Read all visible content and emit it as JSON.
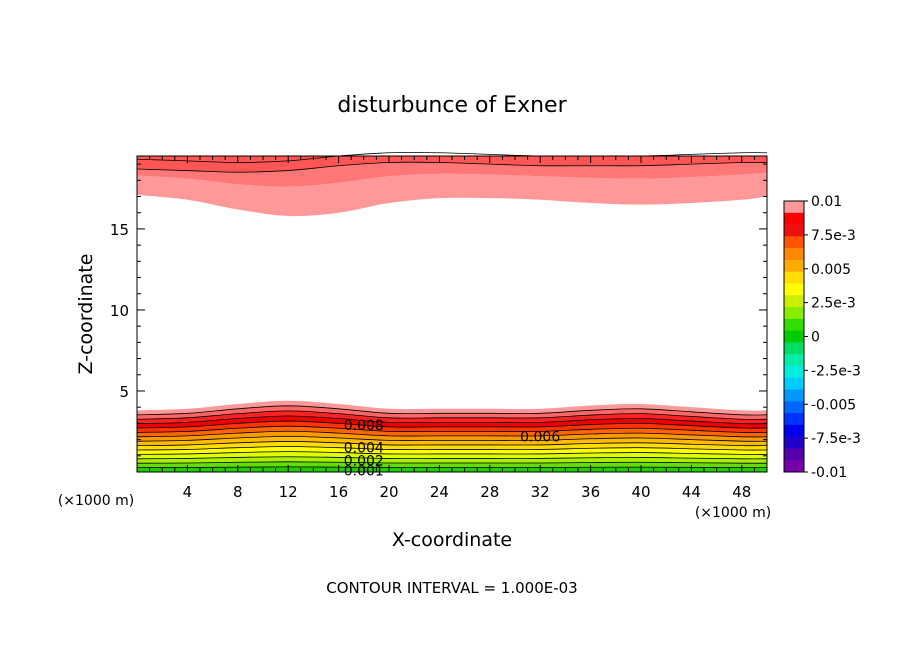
{
  "chart_data": {
    "type": "contour",
    "title": "disturbunce of Exner",
    "xlabel": "X-coordinate",
    "ylabel": "Z-coordinate",
    "x_unit_label": "(×1000 m)",
    "x_unit_label_right": "(×1000 m)",
    "xlim": [
      0,
      50
    ],
    "ylim": [
      0,
      19.5
    ],
    "x_ticks": [
      4,
      8,
      12,
      16,
      20,
      24,
      28,
      32,
      36,
      40,
      44,
      48
    ],
    "y_ticks": [
      5,
      10,
      15
    ],
    "contour_interval_text": "CONTOUR INTERVAL = 1.000E-03",
    "contour_labels": [
      {
        "text": "0.008",
        "x": 18,
        "z": 2.9
      },
      {
        "text": "0.006",
        "x": 32,
        "z": 2.2
      },
      {
        "text": "0.004",
        "x": 18,
        "z": 1.5
      },
      {
        "text": "0.002",
        "x": 18,
        "z": 0.7
      },
      {
        "text": "0.001",
        "x": 18,
        "z": 0.1
      }
    ],
    "colorbar": {
      "labels": [
        "0.01",
        "7.5e-3",
        "0.005",
        "2.5e-3",
        "0",
        "-2.5e-3",
        "-0.005",
        "-7.5e-3",
        "-0.01"
      ],
      "colors": [
        "#ff0000",
        "#ee1111",
        "#ff5500",
        "#ff8800",
        "#ffaa00",
        "#ffdd00",
        "#ffff00",
        "#ccee00",
        "#88ee00",
        "#33dd00",
        "#00cc00",
        "#00dd66",
        "#00eeaa",
        "#00eedd",
        "#00ccff",
        "#0099ff",
        "#0066ff",
        "#0033ff",
        "#0000ee",
        "#2200cc",
        "#5500aa",
        "#7700aa"
      ],
      "top_color": "#ff9999"
    },
    "top_band": {
      "z_base": [
        17.1,
        16.8,
        16.2,
        15.8,
        16.0,
        16.6,
        16.9,
        16.9,
        16.8,
        16.6,
        16.5,
        16.6,
        16.8,
        17.0
      ],
      "z_line": [
        18.7,
        18.6,
        18.5,
        18.6,
        18.9,
        19.1,
        19.1,
        19.0,
        18.9,
        18.9,
        18.9,
        19.0,
        19.1,
        19.1
      ]
    },
    "bottom_band": {
      "z_top": [
        3.8,
        3.9,
        4.2,
        4.4,
        4.2,
        3.9,
        3.9,
        3.9,
        3.9,
        4.1,
        4.2,
        4.0,
        3.8,
        3.8
      ],
      "x_nodes": [
        0,
        4,
        8,
        12,
        16,
        20,
        24,
        28,
        32,
        36,
        40,
        44,
        48,
        50
      ]
    }
  }
}
